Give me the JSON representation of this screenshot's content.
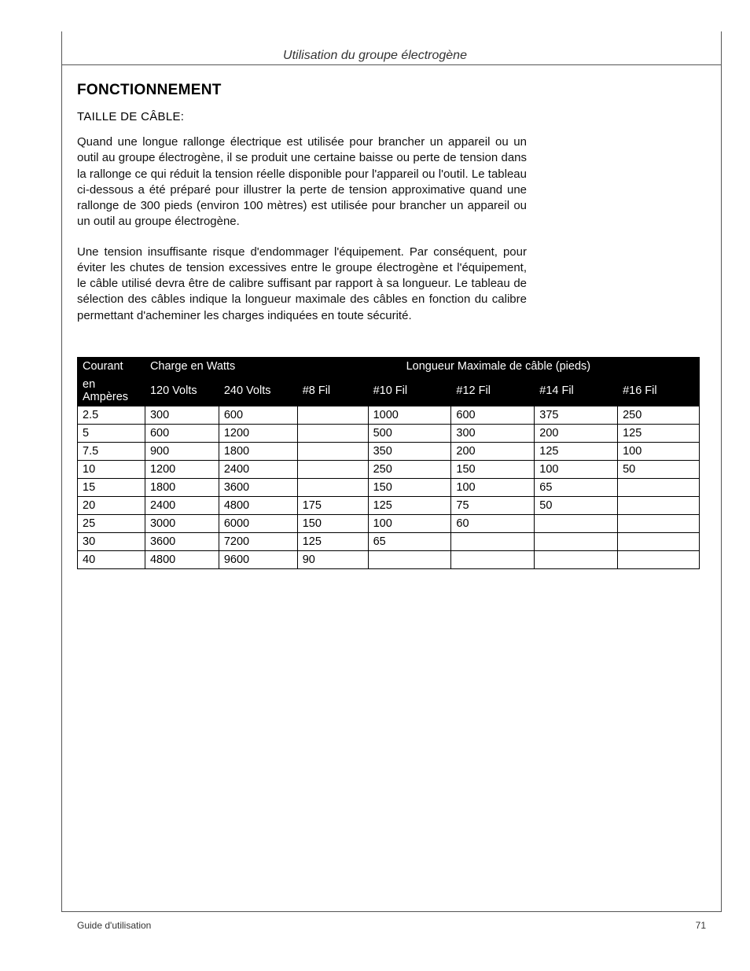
{
  "header": {
    "running_title": "Utilisation du groupe électrogène"
  },
  "section": {
    "heading": "FONCTIONNEMENT",
    "subheading": "TAILLE DE CÂBLE:",
    "para1": "Quand une longue rallonge électrique est utilisée pour brancher un appareil ou un outil au groupe électrogène, il se produit une certaine baisse ou perte de tension dans la rallonge ce qui réduit la tension réelle disponible pour l'appareil ou l'outil. Le tableau ci-dessous a été préparé pour illustrer la perte de tension approximative quand une rallonge de 300 pieds (environ 100 mètres) est utilisée pour brancher un appareil ou un outil au groupe électrogène.",
    "para2": "Une tension insuffisante risque d'endommager l'équipement. Par conséquent, pour éviter les chutes de tension excessives entre le groupe électrogène et l'équipement, le câble utilisé devra être de calibre suffisant par rapport à sa longueur. Le tableau de sélection des câbles indique la longueur maximale des câbles en fonction du calibre permettant d'acheminer les charges indiquées en toute sécurité."
  },
  "table": {
    "columns_top": {
      "courant": "Courant",
      "charge": "Charge en Watts",
      "longueur": "Longueur Maximale de câble (pieds)"
    },
    "columns_sub": {
      "amperes": "en Ampères",
      "v120": "120 Volts",
      "v240": "240 Volts",
      "f8": "#8 Fil",
      "f10": "#10 Fil",
      "f12": "#12 Fil",
      "f14": "#14 Fil",
      "f16": "#16 Fil"
    },
    "rows": [
      {
        "amp": "2.5",
        "v120": "300",
        "v240": "600",
        "f8": "",
        "f10": "1000",
        "f12": "600",
        "f14": "375",
        "f16": "250"
      },
      {
        "amp": "5",
        "v120": "600",
        "v240": "1200",
        "f8": "",
        "f10": "500",
        "f12": "300",
        "f14": "200",
        "f16": "125"
      },
      {
        "amp": "7.5",
        "v120": "900",
        "v240": "1800",
        "f8": "",
        "f10": "350",
        "f12": "200",
        "f14": "125",
        "f16": "100"
      },
      {
        "amp": "10",
        "v120": "1200",
        "v240": "2400",
        "f8": "",
        "f10": "250",
        "f12": "150",
        "f14": "100",
        "f16": "50"
      },
      {
        "amp": "15",
        "v120": "1800",
        "v240": "3600",
        "f8": "",
        "f10": "150",
        "f12": "100",
        "f14": "65",
        "f16": ""
      },
      {
        "amp": "20",
        "v120": "2400",
        "v240": "4800",
        "f8": "175",
        "f10": "125",
        "f12": "75",
        "f14": "50",
        "f16": ""
      },
      {
        "amp": "25",
        "v120": "3000",
        "v240": "6000",
        "f8": "150",
        "f10": "100",
        "f12": "60",
        "f14": "",
        "f16": ""
      },
      {
        "amp": "30",
        "v120": "3600",
        "v240": "7200",
        "f8": "125",
        "f10": "65",
        "f12": "",
        "f14": "",
        "f16": ""
      },
      {
        "amp": "40",
        "v120": "4800",
        "v240": "9600",
        "f8": "90",
        "f10": "",
        "f12": "",
        "f14": "",
        "f16": ""
      }
    ]
  },
  "footer": {
    "doc_label": "Guide d'utilisation",
    "page_number": "71"
  },
  "style": {
    "page_bg": "#ffffff",
    "text_color": "#000000",
    "table_header_bg": "#000000",
    "table_header_fg": "#ffffff",
    "border_color": "#000000"
  }
}
